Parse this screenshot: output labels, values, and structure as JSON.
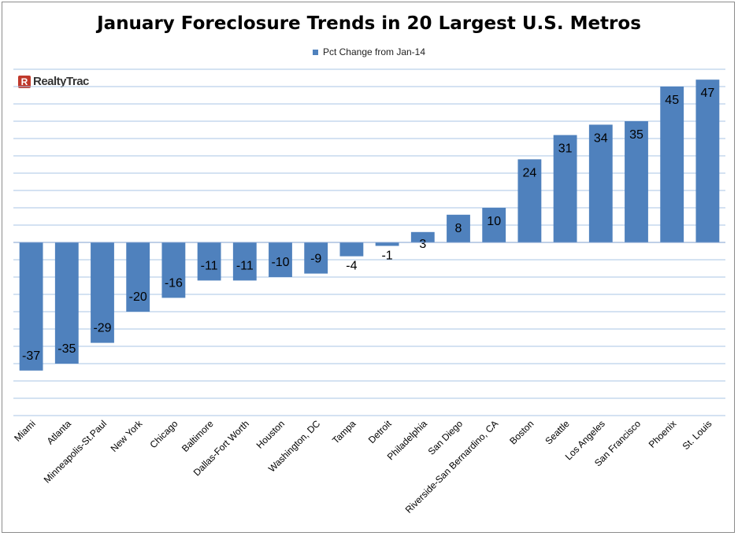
{
  "logo": {
    "mark": "R",
    "text": "RealtyTrac"
  },
  "chart_data": {
    "type": "bar",
    "title": "January Foreclosure Trends in 20 Largest U.S. Metros",
    "legend": {
      "position": "top",
      "label": "Pct Change from Jan-14",
      "color": "#4f81bd"
    },
    "bar_color": "#4f81bd",
    "grid": true,
    "ylim": [
      -50,
      50
    ],
    "categories": [
      "Miami",
      "Atlanta",
      "Minneapolis-St.Paul",
      "New York",
      "Chicago",
      "Baltimore",
      "Dallas-Fort Worth",
      "Houston",
      "Washington, DC",
      "Tampa",
      "Detroit",
      "Philadelphia",
      "San Diego",
      "Riverside-San Bernardino, CA",
      "Boston",
      "Seattle",
      "Los Angeles",
      "San Francisco",
      "Phoenix",
      "St. Louis"
    ],
    "series": [
      {
        "name": "Pct Change from Jan-14",
        "values": [
          -37,
          -35,
          -29,
          -20,
          -16,
          -11,
          -11,
          -10,
          -9,
          -4,
          -1,
          3,
          8,
          10,
          24,
          31,
          34,
          35,
          45,
          47
        ]
      }
    ]
  }
}
